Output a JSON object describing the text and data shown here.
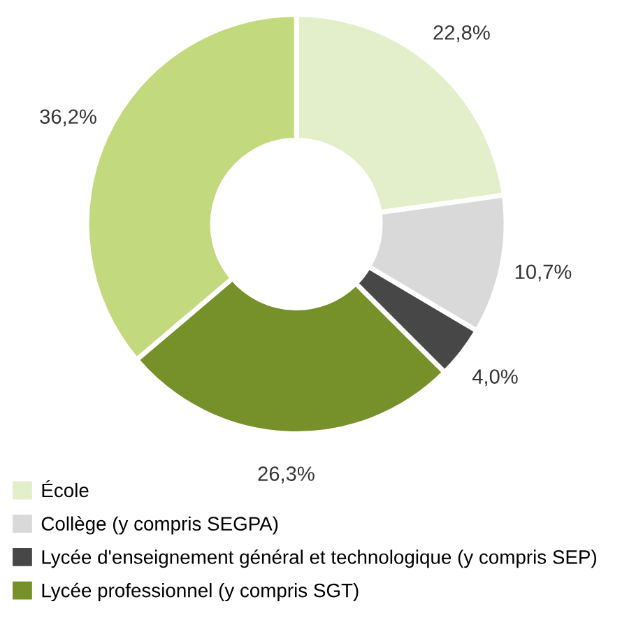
{
  "chart_data": {
    "type": "donut",
    "categories": [
      "École",
      "Collège (y compris SEGPA)",
      "Lycée d'enseignement général et technologique (y compris SEP)",
      "Lycée professionnel (y compris SGT)",
      null
    ],
    "values": [
      22.8,
      10.7,
      4.0,
      26.3,
      36.2
    ],
    "value_labels": [
      "22,8%",
      "10,7%",
      "4,0%",
      "26,3%",
      "36,2%"
    ],
    "colors": [
      "#e3efca",
      "#d9d9d9",
      "#474747",
      "#76902a",
      "#c2d97e"
    ],
    "legend": "bottom left"
  }
}
